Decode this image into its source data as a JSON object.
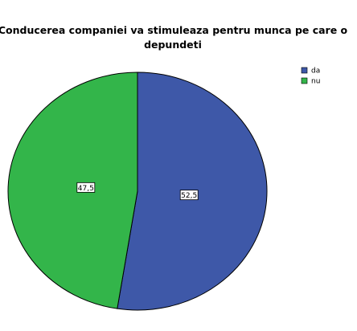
{
  "chart_data": {
    "type": "pie",
    "title": "Conducerea companiei va stimuleaza pentru munca pe care o depundeti",
    "categories": [
      "da",
      "nu"
    ],
    "values": [
      52.5,
      47.5
    ],
    "value_labels": [
      "52,5",
      "47,5"
    ],
    "colors": [
      "#3e58a8",
      "#33b54a"
    ],
    "legend": "top-right"
  }
}
